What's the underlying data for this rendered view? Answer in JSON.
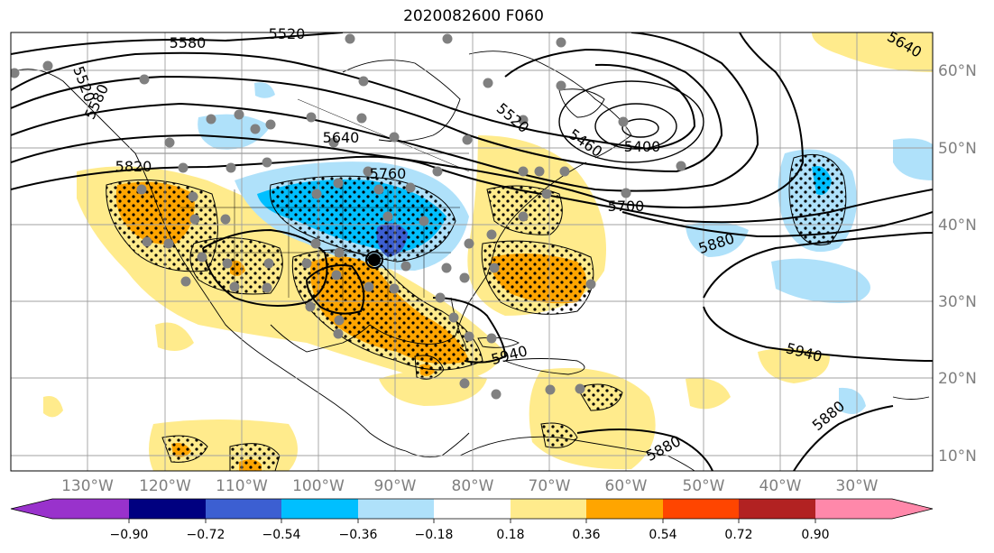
{
  "title": "2020082600 F060",
  "map": {
    "lon_labels": [
      "130°W",
      "120°W",
      "110°W",
      "100°W",
      "90°W",
      "80°W",
      "70°W",
      "60°W",
      "50°W",
      "40°W",
      "30°W"
    ],
    "lat_labels": [
      "60°N",
      "50°N",
      "40°N",
      "30°N",
      "20°N",
      "10°N"
    ],
    "contour_labels": [
      "5580",
      "5520",
      "5520",
      "5580",
      "5640",
      "5820",
      "5760",
      "5520",
      "5460",
      "5400",
      "5700",
      "5880",
      "5940",
      "5940",
      "5880",
      "5880",
      "5640"
    ]
  },
  "colorbar": {
    "ticks": [
      "−0.90",
      "−0.72",
      "−0.54",
      "−0.36",
      "−0.18",
      "0.18",
      "0.36",
      "0.54",
      "0.72",
      "0.90"
    ],
    "colors": [
      "#9932cc",
      "#000080",
      "#3c5fd2",
      "#00bfff",
      "#afe1fa",
      "#ffffff",
      "#ffeb8c",
      "#ffa500",
      "#ff4500",
      "#b22222",
      "#ff88aa"
    ]
  }
}
